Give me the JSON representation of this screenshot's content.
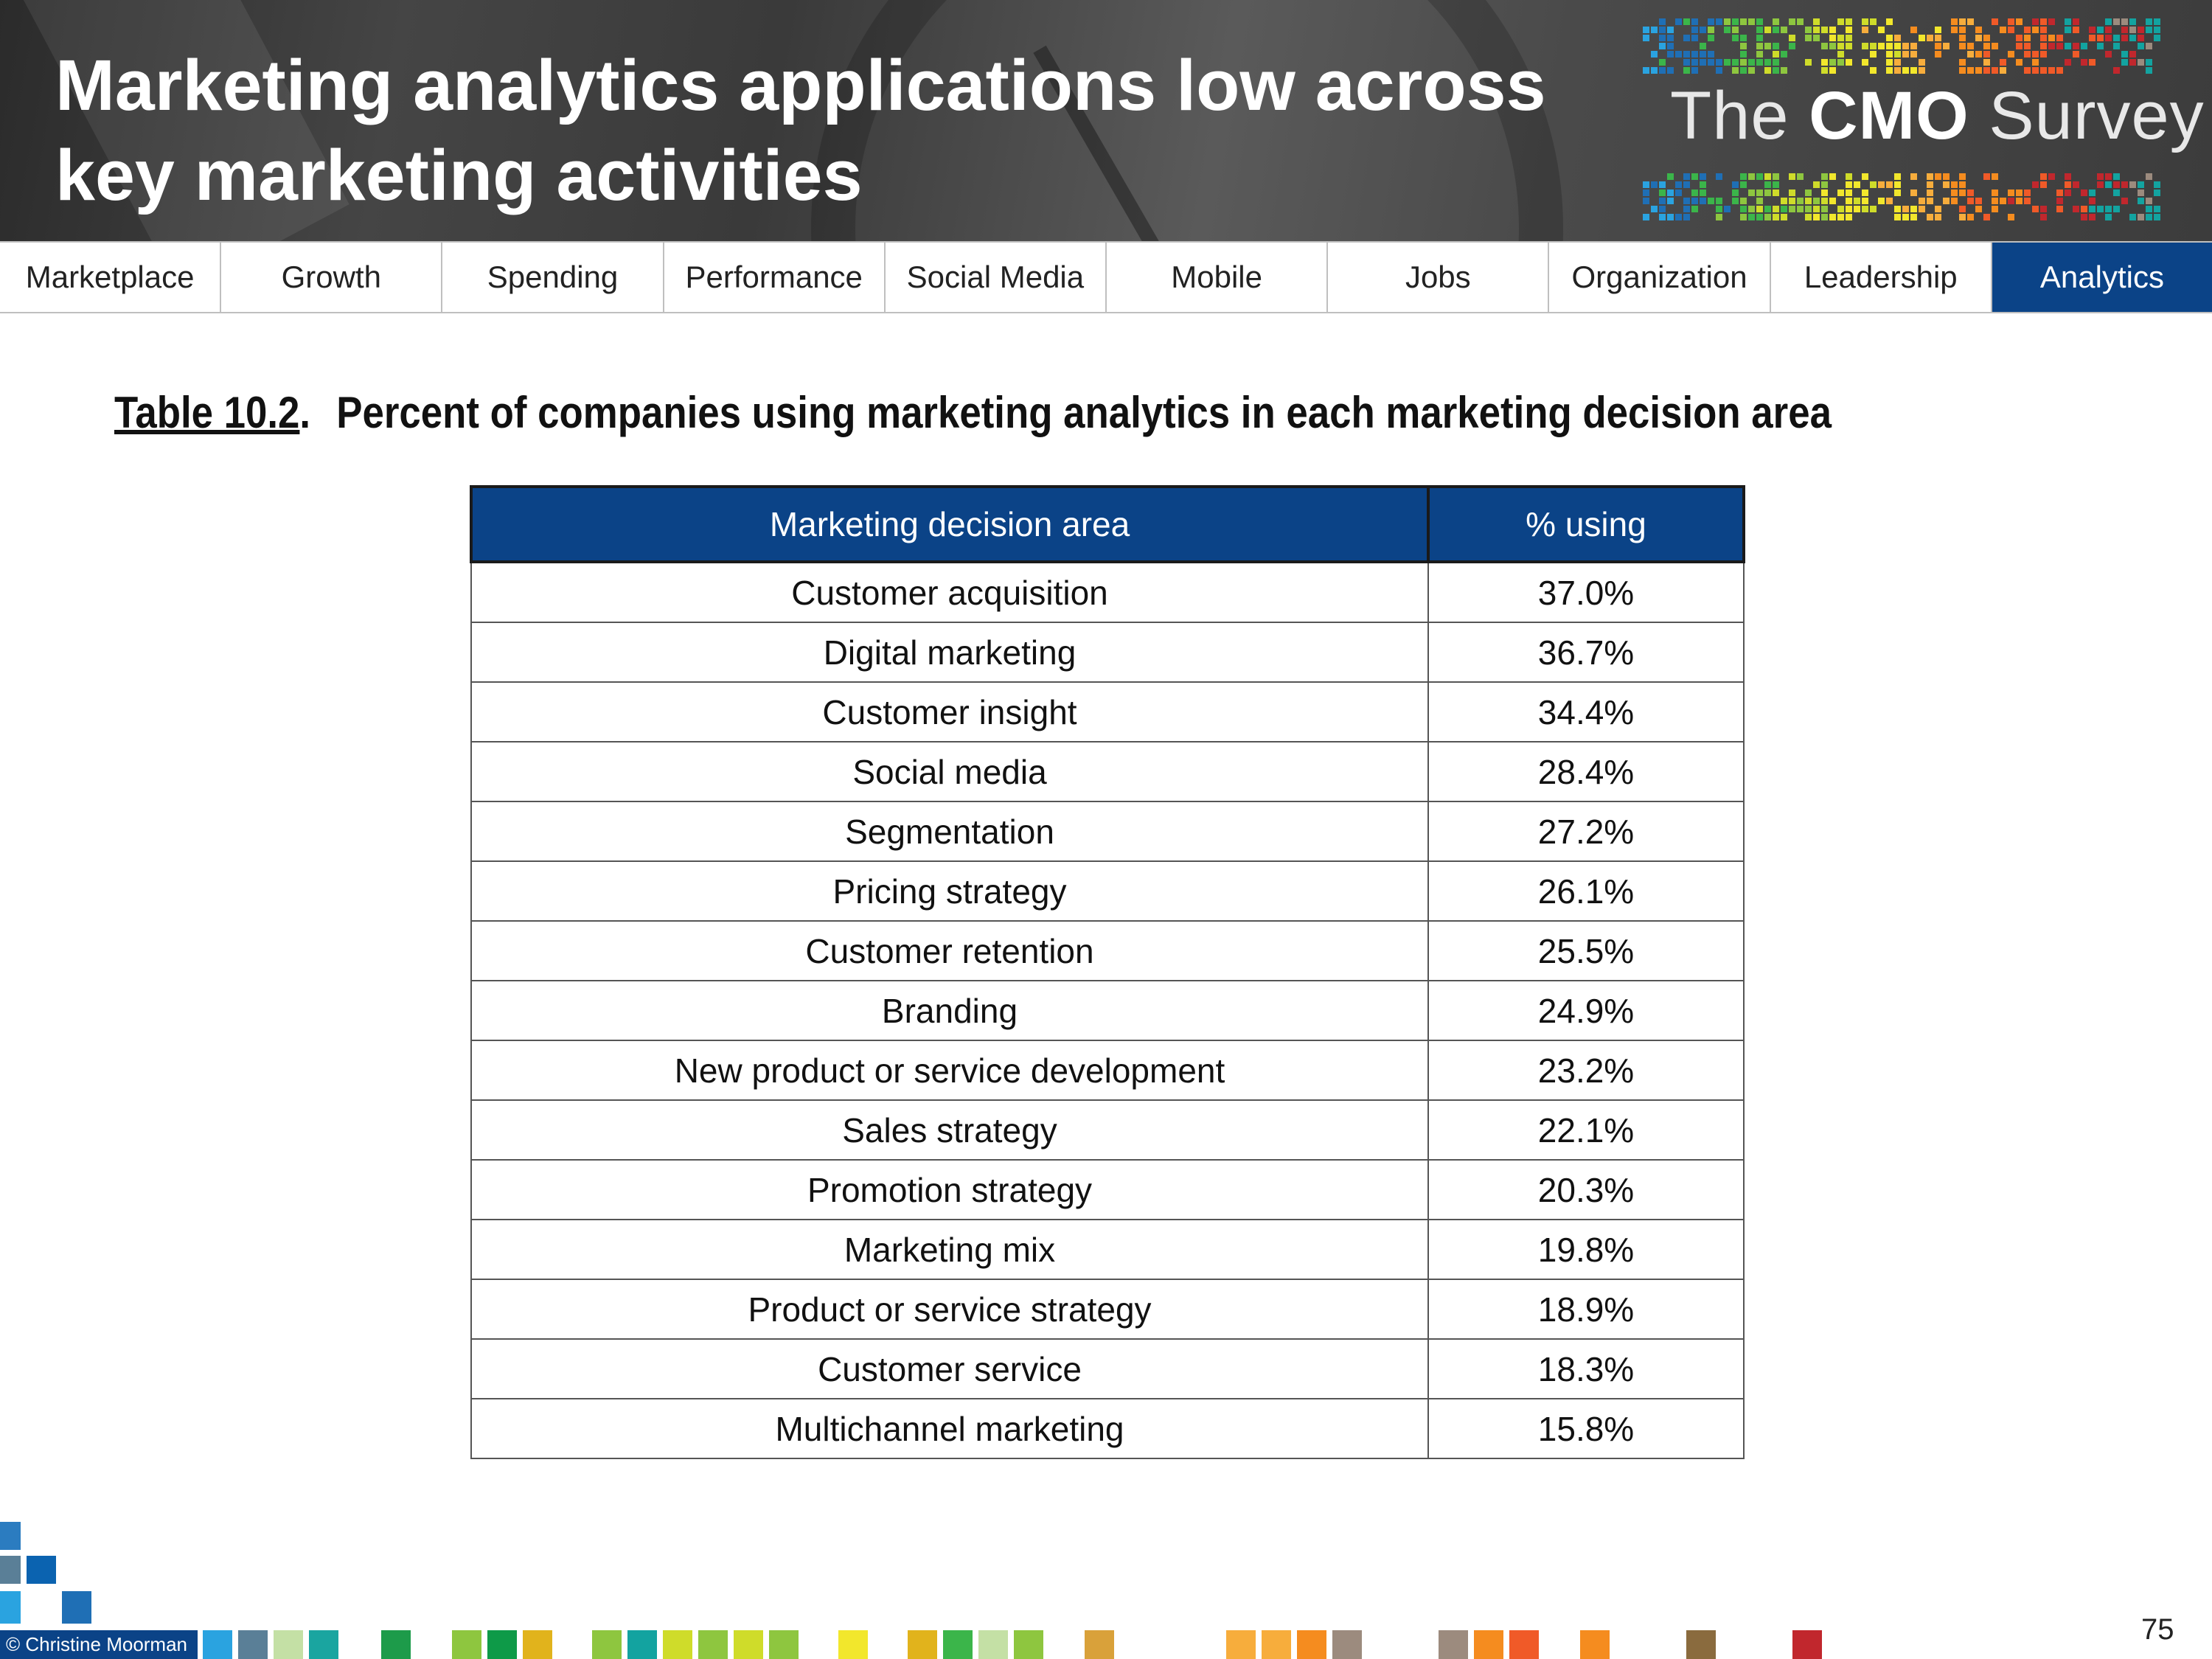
{
  "header": {
    "title_line1": "Marketing analytics applications low across",
    "title_line2": "key marketing activities",
    "brand_prefix": "The ",
    "brand_bold": "CMO",
    "brand_suffix": " Survey"
  },
  "nav": {
    "items": [
      "Marketplace",
      "Growth",
      "Spending",
      "Performance",
      "Social Media",
      "Mobile",
      "Jobs",
      "Organization",
      "Leadership",
      "Analytics"
    ],
    "active": "Analytics"
  },
  "caption": {
    "number": "Table 10.2",
    "dot": ".",
    "text": "Percent of companies using marketing analytics in each marketing decision area"
  },
  "table": {
    "headers": [
      "Marketing decision area",
      "% using"
    ],
    "rows": [
      [
        "Customer acquisition",
        "37.0%"
      ],
      [
        "Digital marketing",
        "36.7%"
      ],
      [
        "Customer insight",
        "34.4%"
      ],
      [
        "Social media",
        "28.4%"
      ],
      [
        "Segmentation",
        "27.2%"
      ],
      [
        "Pricing strategy",
        "26.1%"
      ],
      [
        "Customer retention",
        "25.5%"
      ],
      [
        "Branding",
        "24.9%"
      ],
      [
        "New product or service development",
        "23.2%"
      ],
      [
        "Sales strategy",
        "22.1%"
      ],
      [
        "Promotion strategy",
        "20.3%"
      ],
      [
        "Marketing mix",
        "19.8%"
      ],
      [
        "Product or service strategy",
        "18.9%"
      ],
      [
        "Customer service",
        "18.3%"
      ],
      [
        "Multichannel marketing",
        "15.8%"
      ]
    ]
  },
  "footer": {
    "credit": "© Christine Moorman",
    "page_number": "75"
  },
  "colors": {
    "accent": "#0b4387",
    "squares": [
      "#2aa3e0",
      "#5a7f97",
      "#c4e0a5",
      "#1aa5a0",
      "#1d9b4a",
      "#8ec63f",
      "#0e9a48",
      "#e1b31c",
      "#8ec63f",
      "#13a3a0",
      "#cfdc2a",
      "#8ec63f",
      "#cfdc2a",
      "#8ec63f",
      "#f2e72c",
      "#e1b31c",
      "#3bb54a",
      "#c4e0a5",
      "#8ec63f",
      "#d9a13a",
      "#f7ad3c",
      "#f7ad3c",
      "#f58c1f",
      "#9c8b7e",
      "#9c8b7e",
      "#f58c1f",
      "#f05a28",
      "#f58c1f",
      "#8a6b3e",
      "#c1272d"
    ]
  }
}
